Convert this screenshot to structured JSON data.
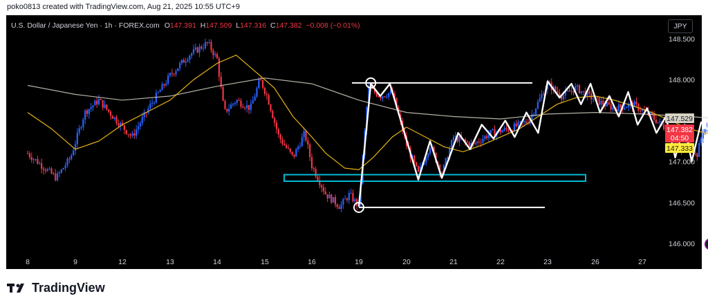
{
  "header": {
    "credit": "poko0813 created with TradingView.com, Aug 21, 2025 10:55 UTC+9"
  },
  "symbol": {
    "name": "U.S. Dollar / Japanese Yen · 1h · FOREX.com",
    "open_label": "O",
    "open": "147.391",
    "high_label": "H",
    "high": "147.509",
    "low_label": "L",
    "low": "147.316",
    "close_label": "C",
    "close": "147.382",
    "change": "−0.008 (−0.01%)"
  },
  "currency_button": "JPY",
  "price_badges": {
    "ma_slow": "147.529",
    "last": "147.382",
    "countdown": "04:50",
    "ma_fast": "147.333"
  },
  "colors": {
    "background": "#000000",
    "up": "#2962ff",
    "down": "#f23645",
    "ma_fast": "#e7b416",
    "ma_slow": "#d6d2c4",
    "zigzag": "#ffffff",
    "projection": "#ffeb3b",
    "support_box": "#00bcd4",
    "last_badge": "#f23645",
    "fast_badge": "#ffeb3b"
  },
  "icons": [
    "lightning-event-icon",
    "us-flag-icon",
    "jp-flag-icon",
    "us-flag-icon",
    "us-flag-icon"
  ],
  "logo_text": "TradingView",
  "chart_data": {
    "type": "candlestick",
    "x_ticks": [
      "8",
      "9",
      "12",
      "13",
      "14",
      "15",
      "16",
      "19",
      "20",
      "21",
      "22",
      "23",
      "26",
      "27"
    ],
    "y_ticks": [
      "148.500",
      "148.000",
      "147.000",
      "146.500",
      "146.000"
    ],
    "ylim": [
      145.9,
      148.55
    ],
    "grid": false,
    "resistance_level": 147.96,
    "support_level": 146.44,
    "support_zone": [
      146.76,
      146.84
    ],
    "zigzag_path": [
      {
        "t": 15.0,
        "p": 146.45
      },
      {
        "t": 15.25,
        "p": 147.95
      },
      {
        "t": 15.45,
        "p": 147.8
      },
      {
        "t": 15.65,
        "p": 147.95
      },
      {
        "t": 16.25,
        "p": 146.78
      },
      {
        "t": 16.5,
        "p": 147.25
      },
      {
        "t": 16.75,
        "p": 146.8
      },
      {
        "t": 17.1,
        "p": 147.35
      },
      {
        "t": 17.35,
        "p": 147.15
      },
      {
        "t": 17.6,
        "p": 147.45
      },
      {
        "t": 17.85,
        "p": 147.28
      },
      {
        "t": 18.1,
        "p": 147.5
      },
      {
        "t": 18.3,
        "p": 147.3
      },
      {
        "t": 18.55,
        "p": 147.6
      },
      {
        "t": 18.8,
        "p": 147.35
      },
      {
        "t": 19.0,
        "p": 147.98
      },
      {
        "t": 19.25,
        "p": 147.78
      },
      {
        "t": 19.5,
        "p": 147.95
      },
      {
        "t": 19.7,
        "p": 147.7
      },
      {
        "t": 19.9,
        "p": 147.95
      },
      {
        "t": 20.1,
        "p": 147.6
      },
      {
        "t": 20.3,
        "p": 147.8
      },
      {
        "t": 20.5,
        "p": 147.55
      },
      {
        "t": 20.7,
        "p": 147.85
      },
      {
        "t": 20.9,
        "p": 147.45
      },
      {
        "t": 21.1,
        "p": 147.65
      },
      {
        "t": 21.3,
        "p": 147.35
      },
      {
        "t": 21.5,
        "p": 147.55
      },
      {
        "t": 21.7,
        "p": 147.05
      },
      {
        "t": 21.9,
        "p": 147.45
      },
      {
        "t": 22.05,
        "p": 147.0
      },
      {
        "t": 22.25,
        "p": 147.48
      },
      {
        "t": 22.45,
        "p": 147.36
      }
    ],
    "projection_a": [
      {
        "t": 23.0,
        "p": 147.02
      },
      {
        "t": 23.18,
        "p": 146.82
      },
      {
        "t": 23.42,
        "p": 147.2
      },
      {
        "t": 23.55,
        "p": 147.08
      },
      {
        "t": 23.78,
        "p": 147.34
      }
    ],
    "projection_b": [
      {
        "t": 24.3,
        "p": 146.55
      },
      {
        "t": 24.5,
        "p": 146.45
      },
      {
        "t": 24.75,
        "p": 146.78
      },
      {
        "t": 24.95,
        "p": 146.64
      },
      {
        "t": 25.22,
        "p": 146.98
      }
    ],
    "event_markers": [
      {
        "t": 22.45,
        "icon": "lightning-event-icon"
      },
      {
        "t": 22.95,
        "icon": "us-flag-icon"
      },
      {
        "t": 23.35,
        "icon": "jp-flag-icon"
      },
      {
        "t": 24.0,
        "icon": "us-flag-icon"
      },
      {
        "t": 28.0,
        "icon": "us-flag-icon"
      }
    ],
    "candle_anchors": [
      {
        "t": 8.0,
        "p": 147.1
      },
      {
        "t": 8.3,
        "p": 146.95
      },
      {
        "t": 8.6,
        "p": 146.8
      },
      {
        "t": 8.9,
        "p": 147.05
      },
      {
        "t": 9.2,
        "p": 147.6
      },
      {
        "t": 9.5,
        "p": 147.75
      },
      {
        "t": 9.8,
        "p": 147.55
      },
      {
        "t": 10.2,
        "p": 147.3
      },
      {
        "t": 10.6,
        "p": 147.7
      },
      {
        "t": 11.0,
        "p": 148.05
      },
      {
        "t": 11.4,
        "p": 148.3
      },
      {
        "t": 11.8,
        "p": 148.45
      },
      {
        "t": 12.0,
        "p": 148.25
      },
      {
        "t": 12.15,
        "p": 147.6
      },
      {
        "t": 12.4,
        "p": 147.75
      },
      {
        "t": 12.7,
        "p": 147.65
      },
      {
        "t": 12.9,
        "p": 148.0
      },
      {
        "t": 13.05,
        "p": 147.8
      },
      {
        "t": 13.3,
        "p": 147.3
      },
      {
        "t": 13.6,
        "p": 147.05
      },
      {
        "t": 13.85,
        "p": 147.35
      },
      {
        "t": 14.0,
        "p": 146.95
      },
      {
        "t": 14.3,
        "p": 146.6
      },
      {
        "t": 14.6,
        "p": 146.45
      },
      {
        "t": 14.8,
        "p": 146.6
      },
      {
        "t": 15.0,
        "p": 146.45
      },
      {
        "t": 15.2,
        "p": 147.9
      },
      {
        "t": 15.45,
        "p": 147.8
      },
      {
        "t": 15.7,
        "p": 147.85
      },
      {
        "t": 16.0,
        "p": 147.2
      },
      {
        "t": 16.25,
        "p": 146.85
      },
      {
        "t": 16.5,
        "p": 147.2
      },
      {
        "t": 16.75,
        "p": 146.85
      },
      {
        "t": 17.0,
        "p": 147.3
      },
      {
        "t": 17.4,
        "p": 147.2
      },
      {
        "t": 17.8,
        "p": 147.35
      },
      {
        "t": 18.2,
        "p": 147.4
      },
      {
        "t": 18.6,
        "p": 147.5
      },
      {
        "t": 19.0,
        "p": 147.95
      },
      {
        "t": 19.3,
        "p": 147.8
      },
      {
        "t": 19.6,
        "p": 147.9
      },
      {
        "t": 20.0,
        "p": 147.75
      },
      {
        "t": 20.4,
        "p": 147.65
      },
      {
        "t": 20.8,
        "p": 147.7
      },
      {
        "t": 21.2,
        "p": 147.55
      },
      {
        "t": 21.6,
        "p": 147.35
      },
      {
        "t": 21.8,
        "p": 147.1
      },
      {
        "t": 22.0,
        "p": 147.25
      },
      {
        "t": 22.15,
        "p": 147.05
      },
      {
        "t": 22.3,
        "p": 147.4
      },
      {
        "t": 22.45,
        "p": 147.38
      }
    ],
    "ma_fast": [
      {
        "t": 8.0,
        "p": 147.6
      },
      {
        "t": 8.5,
        "p": 147.4
      },
      {
        "t": 9.0,
        "p": 147.15
      },
      {
        "t": 9.5,
        "p": 147.25
      },
      {
        "t": 10.0,
        "p": 147.45
      },
      {
        "t": 10.5,
        "p": 147.6
      },
      {
        "t": 11.0,
        "p": 147.75
      },
      {
        "t": 11.5,
        "p": 148.0
      },
      {
        "t": 12.0,
        "p": 148.2
      },
      {
        "t": 12.4,
        "p": 148.3
      },
      {
        "t": 12.8,
        "p": 148.1
      },
      {
        "t": 13.2,
        "p": 147.9
      },
      {
        "t": 13.6,
        "p": 147.55
      },
      {
        "t": 14.0,
        "p": 147.3
      },
      {
        "t": 14.3,
        "p": 147.1
      },
      {
        "t": 14.7,
        "p": 146.92
      },
      {
        "t": 15.0,
        "p": 146.9
      },
      {
        "t": 15.3,
        "p": 147.05
      },
      {
        "t": 15.7,
        "p": 147.3
      },
      {
        "t": 16.0,
        "p": 147.42
      },
      {
        "t": 16.4,
        "p": 147.3
      },
      {
        "t": 16.8,
        "p": 147.18
      },
      {
        "t": 17.2,
        "p": 147.12
      },
      {
        "t": 17.6,
        "p": 147.2
      },
      {
        "t": 18.0,
        "p": 147.3
      },
      {
        "t": 18.4,
        "p": 147.4
      },
      {
        "t": 18.8,
        "p": 147.55
      },
      {
        "t": 19.2,
        "p": 147.7
      },
      {
        "t": 19.6,
        "p": 147.78
      },
      {
        "t": 20.0,
        "p": 147.8
      },
      {
        "t": 20.4,
        "p": 147.75
      },
      {
        "t": 20.8,
        "p": 147.68
      },
      {
        "t": 21.2,
        "p": 147.6
      },
      {
        "t": 21.6,
        "p": 147.5
      },
      {
        "t": 22.0,
        "p": 147.4
      },
      {
        "t": 22.45,
        "p": 147.33
      }
    ],
    "ma_slow": [
      {
        "t": 8.0,
        "p": 147.93
      },
      {
        "t": 9.0,
        "p": 147.82
      },
      {
        "t": 10.0,
        "p": 147.75
      },
      {
        "t": 11.0,
        "p": 147.8
      },
      {
        "t": 12.0,
        "p": 147.92
      },
      {
        "t": 13.0,
        "p": 148.02
      },
      {
        "t": 14.0,
        "p": 147.95
      },
      {
        "t": 15.0,
        "p": 147.75
      },
      {
        "t": 16.0,
        "p": 147.6
      },
      {
        "t": 17.0,
        "p": 147.55
      },
      {
        "t": 18.0,
        "p": 147.52
      },
      {
        "t": 19.0,
        "p": 147.58
      },
      {
        "t": 20.0,
        "p": 147.6
      },
      {
        "t": 21.0,
        "p": 147.58
      },
      {
        "t": 22.0,
        "p": 147.55
      },
      {
        "t": 22.45,
        "p": 147.53
      }
    ]
  }
}
